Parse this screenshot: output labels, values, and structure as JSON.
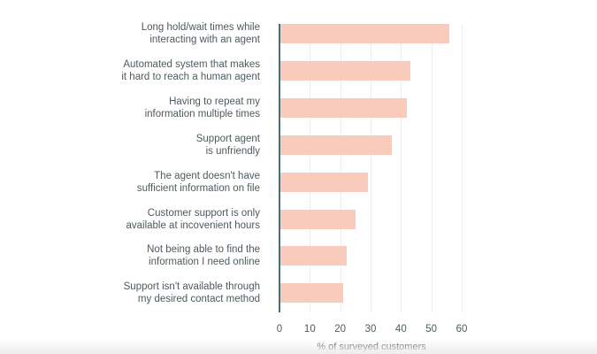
{
  "chart_data": {
    "type": "bar",
    "orientation": "horizontal",
    "title": "",
    "xlabel": "% of surveyed customers",
    "ylabel": "",
    "xlim": [
      0,
      60
    ],
    "xticks": [
      "0",
      "10",
      "20",
      "30",
      "40",
      "50",
      "60"
    ],
    "grid": true,
    "legend": null,
    "bar_color": "#f9cbbd",
    "axis_color": "#4a6e78",
    "categories": [
      [
        "Long hold/wait times while",
        "interacting with an agent"
      ],
      [
        "Automated system that makes",
        "it hard to reach a human agent"
      ],
      [
        "Having to repeat my",
        "information multiple times"
      ],
      [
        "Support agent",
        "is unfriendly"
      ],
      [
        "The agent doesn't have",
        "sufficient information on file"
      ],
      [
        "Customer support is only",
        "available at incovenient hours"
      ],
      [
        "Not being able to find the",
        "information I need online"
      ],
      [
        "Support isn't available through",
        "my desired contact method"
      ]
    ],
    "values": [
      56,
      43,
      42,
      37,
      29,
      25,
      22,
      21
    ]
  }
}
